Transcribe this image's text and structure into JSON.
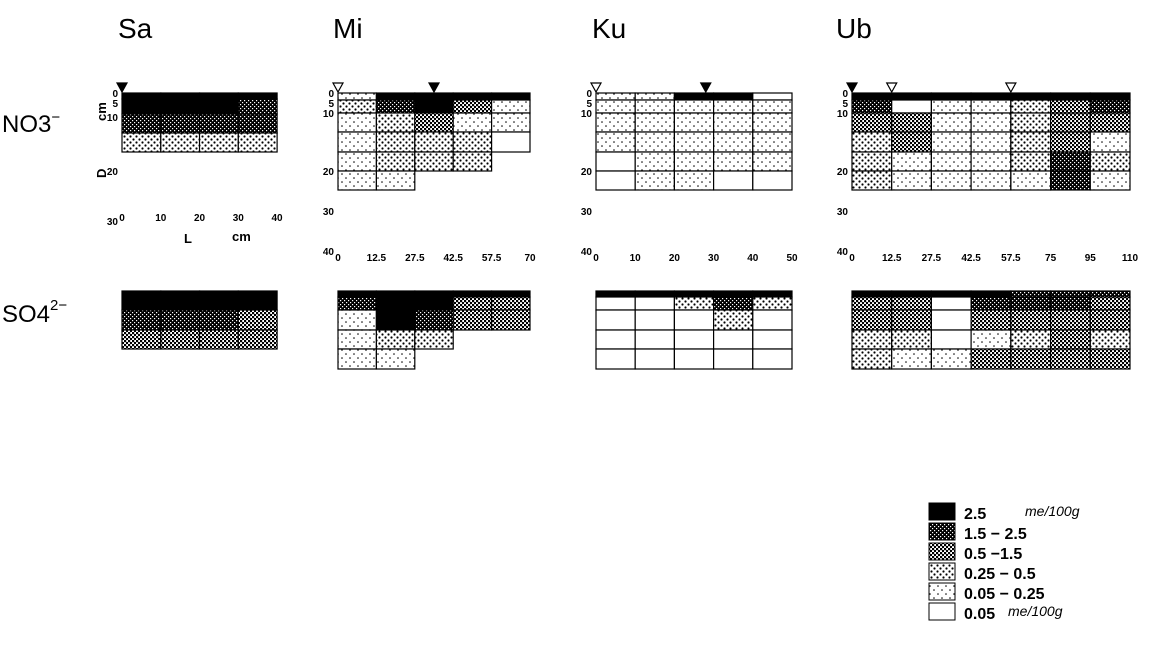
{
  "chart_data": {
    "type": "heatmap",
    "row_labels": [
      {
        "base": "NO3",
        "sup": "−"
      },
      {
        "base": "SO4",
        "sup": "2−"
      }
    ],
    "axis_labels": {
      "depth": "D",
      "depth_unit": "cm",
      "length": "L",
      "length_unit": "cm"
    },
    "legend": {
      "classes": [
        {
          "label": "2.5",
          "unit": "me/100g",
          "color": "#000000"
        },
        {
          "label": "1.5  − 2.5",
          "unit": "",
          "color": "#2e2e2e"
        },
        {
          "label": "0.5  −1.5",
          "unit": "",
          "color": "#5f5f5f"
        },
        {
          "label": "0.25 − 0.5",
          "unit": "",
          "color": "#9a9a9a"
        },
        {
          "label": "0.05 − 0.25",
          "unit": "",
          "color": "#cdcdcd"
        },
        {
          "label": "0.05",
          "unit": "me/100g",
          "color": "#ffffff"
        }
      ]
    },
    "panels": [
      {
        "site": "Sa",
        "x_ticks": [
          "0",
          "10",
          "20",
          "30",
          "40"
        ],
        "y_ticks": [
          "0",
          "5",
          "10",
          "20",
          "30"
        ],
        "markers": [
          {
            "x": 0,
            "filled": true
          }
        ],
        "NO3": [
          [
            0,
            0,
            0,
            0
          ],
          [
            0,
            0,
            0,
            1
          ],
          [
            1,
            1,
            1,
            1
          ],
          [
            3,
            3,
            3,
            3
          ]
        ],
        "SO4": [
          [
            0,
            0,
            0,
            0
          ],
          [
            1,
            1,
            1,
            2
          ],
          [
            2,
            2,
            2,
            2
          ]
        ]
      },
      {
        "site": "Mi",
        "x_ticks": [
          "0",
          "12.5",
          "27.5",
          "42.5",
          "57.5",
          "70"
        ],
        "y_ticks": [
          "0",
          "5",
          "10",
          "20",
          "30",
          "40"
        ],
        "markers": [
          {
            "x": 0,
            "filled": false
          },
          {
            "x": 2.5,
            "filled": true
          }
        ],
        "NO3": [
          [
            4,
            0,
            0,
            0,
            0
          ],
          [
            3,
            1,
            0,
            2,
            4
          ],
          [
            4,
            3,
            2,
            4,
            4
          ],
          [
            4,
            3,
            3,
            3,
            5
          ],
          [
            4,
            3,
            3,
            3,
            null
          ],
          [
            4,
            4,
            null,
            null,
            null
          ]
        ],
        "SO4": [
          [
            0,
            0,
            0,
            0,
            0
          ],
          [
            1,
            0,
            0,
            2,
            2
          ],
          [
            4,
            0,
            1,
            2,
            2
          ],
          [
            4,
            3,
            3,
            null,
            null
          ],
          [
            4,
            4,
            null,
            null,
            null
          ]
        ]
      },
      {
        "site": "Ku",
        "x_ticks": [
          "0",
          "10",
          "20",
          "30",
          "40",
          "50"
        ],
        "y_ticks": [
          "0",
          "5",
          "10",
          "20",
          "30",
          "40"
        ],
        "markers": [
          {
            "x": 0,
            "filled": false
          },
          {
            "x": 2.8,
            "filled": true
          }
        ],
        "NO3": [
          [
            4,
            4,
            0,
            0,
            5
          ],
          [
            4,
            4,
            4,
            4,
            4
          ],
          [
            4,
            4,
            4,
            4,
            4
          ],
          [
            4,
            4,
            4,
            4,
            4
          ],
          [
            5,
            4,
            4,
            4,
            4
          ],
          [
            5,
            4,
            4,
            5,
            5
          ]
        ],
        "SO4": [
          [
            0,
            0,
            0,
            0,
            0
          ],
          [
            5,
            5,
            3,
            1,
            3
          ],
          [
            5,
            5,
            5,
            3,
            5
          ],
          [
            5,
            5,
            5,
            5,
            5
          ],
          [
            5,
            5,
            5,
            5,
            5
          ]
        ]
      },
      {
        "site": "Ub",
        "x_ticks": [
          "0",
          "12.5",
          "27.5",
          "42.5",
          "57.5",
          "75",
          "95",
          "110"
        ],
        "y_ticks": [
          "0",
          "5",
          "10",
          "20",
          "30",
          "40"
        ],
        "markers": [
          {
            "x": 0,
            "filled": true
          },
          {
            "x": 1,
            "filled": false
          },
          {
            "x": 4,
            "filled": false
          }
        ],
        "NO3": [
          [
            0,
            0,
            0,
            0,
            0,
            0,
            0
          ],
          [
            1,
            5,
            4,
            4,
            3,
            2,
            1
          ],
          [
            2,
            2,
            4,
            4,
            3,
            2,
            2
          ],
          [
            3,
            2,
            4,
            4,
            3,
            2,
            4
          ],
          [
            3,
            4,
            4,
            4,
            3,
            1,
            3
          ],
          [
            3,
            4,
            4,
            4,
            4,
            1,
            4
          ]
        ],
        "SO4": [
          [
            0,
            0,
            0,
            0,
            1,
            1,
            1
          ],
          [
            2,
            2,
            5,
            1,
            1,
            1,
            2
          ],
          [
            2,
            2,
            5,
            2,
            2,
            2,
            2
          ],
          [
            3,
            3,
            5,
            4,
            3,
            2,
            3
          ],
          [
            3,
            4,
            4,
            2,
            2,
            2,
            2
          ]
        ]
      }
    ]
  }
}
